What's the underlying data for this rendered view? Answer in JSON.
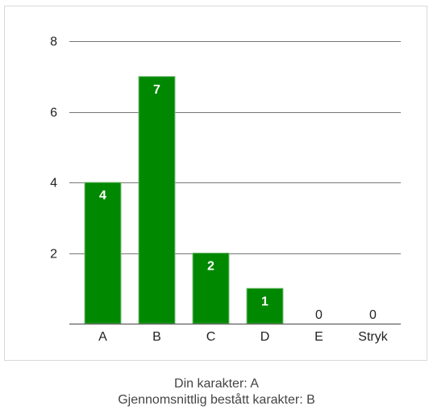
{
  "chart_data": {
    "type": "bar",
    "categories": [
      "A",
      "B",
      "C",
      "D",
      "E",
      "Stryk"
    ],
    "values": [
      4,
      7,
      2,
      1,
      0,
      0
    ],
    "ylim": [
      0,
      8
    ],
    "yticks": [
      2,
      4,
      6,
      8
    ],
    "grid": true,
    "data_labels": true,
    "legend": "none",
    "colors": {
      "bar": "#008800",
      "bar_border": "#7fbf7f",
      "grid": "#777777",
      "axis": "#444444",
      "inside_label": "#ffffff",
      "outside_label": "#222222"
    }
  },
  "summary": {
    "line1": "Din karakter: A",
    "line2": "Gjennomsnittlig bestått karakter: B"
  }
}
